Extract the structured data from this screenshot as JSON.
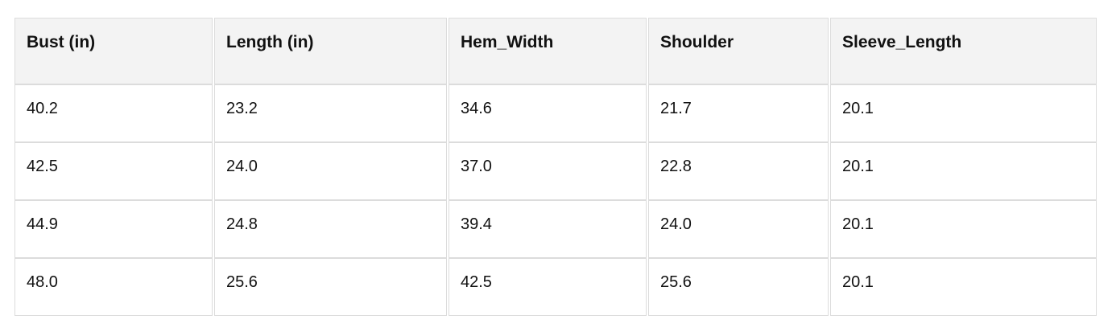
{
  "table": {
    "columns": [
      "Bust (in)",
      "Length (in)",
      "Hem_Width",
      "Shoulder",
      "Sleeve_Length"
    ],
    "column_names": [
      "bust",
      "length",
      "hem-width",
      "shoulder",
      "sleeve-length"
    ],
    "rows": [
      [
        "40.2",
        "23.2",
        "34.6",
        "21.7",
        "20.1"
      ],
      [
        "42.5",
        "24.0",
        "37.0",
        "22.8",
        "20.1"
      ],
      [
        "44.9",
        "24.8",
        "39.4",
        "24.0",
        "20.1"
      ],
      [
        "48.0",
        "25.6",
        "42.5",
        "25.6",
        "20.1"
      ]
    ]
  },
  "chart_data": {
    "type": "table",
    "columns": [
      "Bust (in)",
      "Length (in)",
      "Hem_Width",
      "Shoulder",
      "Sleeve_Length"
    ],
    "rows": [
      [
        40.2,
        23.2,
        34.6,
        21.7,
        20.1
      ],
      [
        42.5,
        24.0,
        37.0,
        22.8,
        20.1
      ],
      [
        44.9,
        24.8,
        39.4,
        24.0,
        20.1
      ],
      [
        48.0,
        25.6,
        42.5,
        25.6,
        20.1
      ]
    ]
  },
  "colors": {
    "header_bg": "#f3f3f3",
    "cell_border": "#dcdcdc",
    "text": "#111111",
    "page_bg": "#ffffff"
  }
}
